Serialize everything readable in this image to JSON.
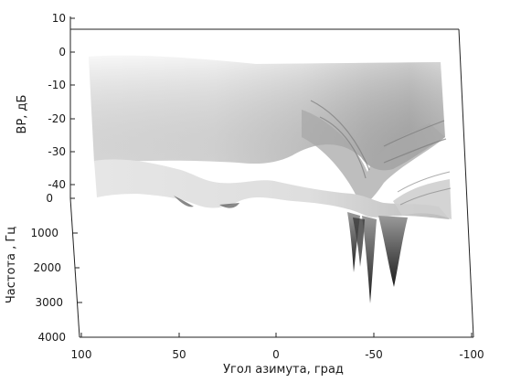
{
  "chart_data": {
    "type": "surface",
    "xlabel": "Угол азимута, град",
    "ylabel": "Частота , Гц",
    "zlabel": "ВР, дБ",
    "x_ticks": [
      "100",
      "50",
      "0",
      "-50",
      "-100"
    ],
    "y_ticks": [
      "0",
      "1000",
      "2000",
      "3000",
      "4000"
    ],
    "z_ticks": [
      "10",
      "0",
      "-10",
      "-20",
      "-30",
      "-40"
    ],
    "xlim": [
      100,
      -100
    ],
    "ylim": [
      0,
      4000
    ],
    "zlim": [
      -45,
      10
    ],
    "colormap": "gray",
    "grid": false
  }
}
